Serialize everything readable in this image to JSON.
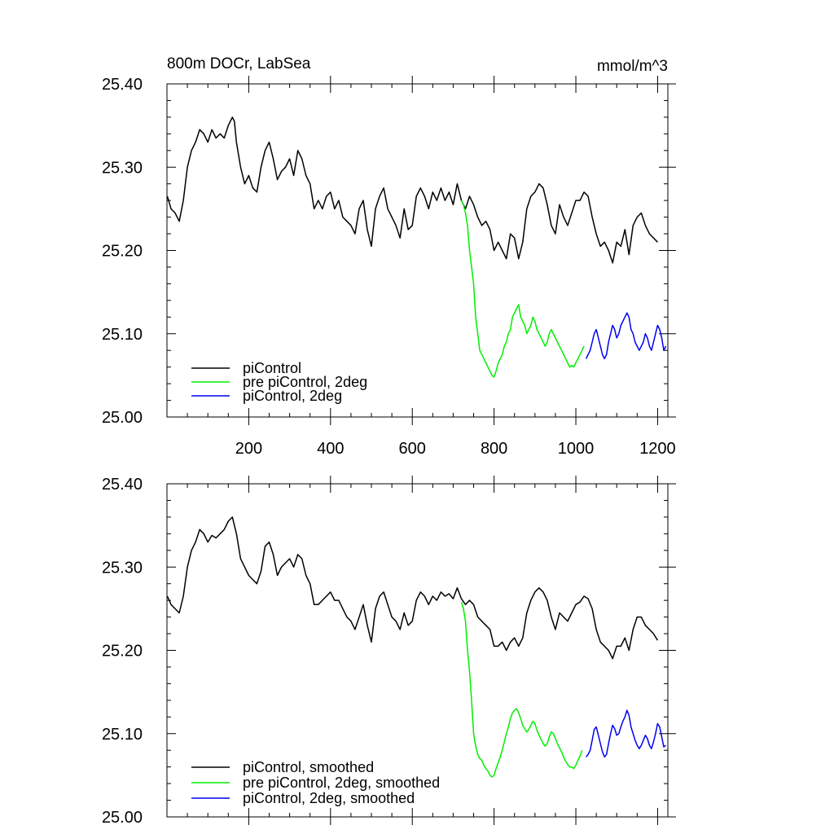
{
  "chart_data": [
    {
      "type": "line",
      "title_left": "800m DOCr, LabSea",
      "title_right": "mmol/m^3",
      "xlim": [
        0,
        1225
      ],
      "ylim": [
        25.0,
        25.4
      ],
      "x_tick_values": [
        200,
        400,
        600,
        800,
        1000,
        1200
      ],
      "x_tick_labels": [
        "200",
        "400",
        "600",
        "800",
        "1000",
        "1200"
      ],
      "y_tick_values": [
        25.0,
        25.1,
        25.2,
        25.3,
        25.4
      ],
      "y_tick_labels": [
        "25.00",
        "25.10",
        "25.20",
        "25.30",
        "25.40"
      ],
      "legend_position": "bottom-left",
      "series": [
        {
          "name": "piControl",
          "color": "#000000",
          "x": [
            1,
            10,
            20,
            30,
            40,
            50,
            60,
            70,
            80,
            90,
            100,
            110,
            120,
            130,
            140,
            150,
            160,
            165,
            170,
            180,
            190,
            200,
            210,
            220,
            230,
            240,
            250,
            260,
            270,
            280,
            290,
            300,
            310,
            320,
            330,
            340,
            350,
            360,
            370,
            380,
            390,
            400,
            410,
            420,
            430,
            440,
            450,
            460,
            470,
            480,
            490,
            500,
            510,
            520,
            530,
            540,
            550,
            560,
            570,
            580,
            590,
            600,
            610,
            620,
            630,
            640,
            650,
            660,
            670,
            680,
            690,
            700,
            710,
            720,
            730,
            740,
            750,
            760,
            770,
            780,
            790,
            800,
            810,
            820,
            830,
            840,
            850,
            860,
            870,
            880,
            890,
            900,
            910,
            920,
            930,
            940,
            950,
            960,
            970,
            980,
            990,
            1000,
            1010,
            1020,
            1030,
            1040,
            1050,
            1060,
            1070,
            1080,
            1090,
            1100,
            1110,
            1120,
            1130,
            1140,
            1150,
            1160,
            1170,
            1180,
            1190,
            1200
          ],
          "y": [
            25.265,
            25.25,
            25.245,
            25.235,
            25.26,
            25.3,
            25.32,
            25.33,
            25.345,
            25.34,
            25.33,
            25.345,
            25.335,
            25.34,
            25.335,
            25.35,
            25.36,
            25.355,
            25.33,
            25.3,
            25.28,
            25.29,
            25.275,
            25.27,
            25.3,
            25.32,
            25.33,
            25.31,
            25.285,
            25.295,
            25.3,
            25.31,
            25.29,
            25.32,
            25.31,
            25.29,
            25.28,
            25.25,
            25.26,
            25.25,
            25.265,
            25.27,
            25.25,
            25.26,
            25.24,
            25.235,
            25.23,
            25.22,
            25.25,
            25.26,
            25.225,
            25.205,
            25.25,
            25.265,
            25.275,
            25.25,
            25.24,
            25.23,
            25.215,
            25.25,
            25.225,
            25.23,
            25.265,
            25.275,
            25.265,
            25.25,
            25.27,
            25.26,
            25.275,
            25.26,
            25.27,
            25.255,
            25.28,
            25.26,
            25.25,
            25.265,
            25.255,
            25.24,
            25.23,
            25.235,
            25.225,
            25.2,
            25.21,
            25.2,
            25.19,
            25.22,
            25.215,
            25.19,
            25.21,
            25.25,
            25.265,
            25.27,
            25.28,
            25.275,
            25.255,
            25.23,
            25.22,
            25.255,
            25.24,
            25.23,
            25.245,
            25.26,
            25.26,
            25.27,
            25.265,
            25.24,
            25.22,
            25.205,
            25.21,
            25.2,
            25.185,
            25.21,
            25.205,
            25.225,
            25.195,
            25.23,
            25.24,
            25.245,
            25.23,
            25.22,
            25.215,
            25.21
          ]
        },
        {
          "name": "pre piControl, 2deg",
          "color": "#00ee00",
          "x": [
            720,
            725,
            730,
            735,
            740,
            745,
            750,
            755,
            760,
            765,
            770,
            775,
            780,
            785,
            790,
            795,
            800,
            805,
            810,
            815,
            820,
            825,
            830,
            835,
            840,
            845,
            850,
            855,
            860,
            865,
            870,
            875,
            880,
            885,
            890,
            895,
            900,
            905,
            910,
            915,
            920,
            925,
            930,
            935,
            940,
            945,
            950,
            955,
            960,
            965,
            970,
            975,
            980,
            985,
            990,
            995,
            1000,
            1005,
            1010,
            1015,
            1020
          ],
          "y": [
            25.26,
            25.255,
            25.245,
            25.23,
            25.2,
            25.18,
            25.16,
            25.12,
            25.1,
            25.08,
            25.075,
            25.07,
            25.065,
            25.06,
            25.055,
            25.05,
            25.048,
            25.055,
            25.065,
            25.07,
            25.075,
            25.085,
            25.09,
            25.1,
            25.105,
            25.12,
            25.125,
            25.13,
            25.135,
            25.12,
            25.115,
            25.11,
            25.1,
            25.105,
            25.11,
            25.12,
            25.115,
            25.105,
            25.1,
            25.095,
            25.09,
            25.085,
            25.09,
            25.1,
            25.105,
            25.1,
            25.095,
            25.09,
            25.085,
            25.08,
            25.075,
            25.07,
            25.065,
            25.06,
            25.062,
            25.06,
            25.065,
            25.07,
            25.075,
            25.08,
            25.085
          ]
        },
        {
          "name": "piControl, 2deg",
          "color": "#0000ee",
          "x": [
            1025,
            1030,
            1035,
            1040,
            1045,
            1050,
            1055,
            1060,
            1065,
            1070,
            1075,
            1080,
            1085,
            1090,
            1095,
            1100,
            1105,
            1110,
            1115,
            1120,
            1125,
            1130,
            1135,
            1140,
            1145,
            1150,
            1155,
            1160,
            1165,
            1170,
            1175,
            1180,
            1185,
            1190,
            1195,
            1200,
            1205,
            1210,
            1215,
            1220
          ],
          "y": [
            25.07,
            25.075,
            25.08,
            25.09,
            25.1,
            25.105,
            25.095,
            25.085,
            25.075,
            25.07,
            25.075,
            25.09,
            25.1,
            25.11,
            25.105,
            25.095,
            25.1,
            25.11,
            25.115,
            25.12,
            25.125,
            25.12,
            25.105,
            25.1,
            25.09,
            25.085,
            25.08,
            25.085,
            25.09,
            25.1,
            25.095,
            25.085,
            25.08,
            25.09,
            25.1,
            25.11,
            25.105,
            25.095,
            25.08,
            25.085
          ]
        }
      ]
    },
    {
      "type": "line",
      "title_left": "",
      "title_right": "",
      "xlim": [
        0,
        1225
      ],
      "ylim": [
        25.0,
        25.4
      ],
      "x_tick_values": [
        200,
        400,
        600,
        800,
        1000,
        1200
      ],
      "x_tick_labels": [],
      "y_tick_values": [
        25.0,
        25.1,
        25.2,
        25.3,
        25.4
      ],
      "y_tick_labels": [
        "25.00",
        "25.10",
        "25.20",
        "25.30",
        "25.40"
      ],
      "legend_position": "bottom-left",
      "series": [
        {
          "name": "piControl, smoothed",
          "color": "#000000",
          "x": [
            1,
            10,
            20,
            30,
            40,
            50,
            60,
            70,
            80,
            90,
            100,
            110,
            120,
            130,
            140,
            150,
            160,
            170,
            180,
            190,
            200,
            210,
            220,
            230,
            240,
            250,
            260,
            270,
            280,
            290,
            300,
            310,
            320,
            330,
            340,
            350,
            360,
            370,
            380,
            390,
            400,
            410,
            420,
            430,
            440,
            450,
            460,
            470,
            480,
            490,
            500,
            510,
            520,
            530,
            540,
            550,
            560,
            570,
            580,
            590,
            600,
            610,
            620,
            630,
            640,
            650,
            660,
            670,
            680,
            690,
            700,
            710,
            720,
            730,
            740,
            750,
            760,
            770,
            780,
            790,
            800,
            810,
            820,
            830,
            840,
            850,
            860,
            870,
            880,
            890,
            900,
            910,
            920,
            930,
            940,
            950,
            960,
            970,
            980,
            990,
            1000,
            1010,
            1020,
            1030,
            1040,
            1050,
            1060,
            1070,
            1080,
            1090,
            1100,
            1110,
            1120,
            1130,
            1140,
            1150,
            1160,
            1170,
            1180,
            1190,
            1200
          ],
          "y": [
            25.265,
            25.255,
            25.25,
            25.245,
            25.265,
            25.3,
            25.32,
            25.33,
            25.345,
            25.34,
            25.33,
            25.338,
            25.335,
            25.34,
            25.345,
            25.355,
            25.36,
            25.34,
            25.31,
            25.3,
            25.29,
            25.285,
            25.28,
            25.295,
            25.325,
            25.33,
            25.315,
            25.29,
            25.3,
            25.305,
            25.31,
            25.3,
            25.315,
            25.31,
            25.29,
            25.28,
            25.255,
            25.255,
            25.26,
            25.265,
            25.27,
            25.26,
            25.26,
            25.25,
            25.24,
            25.235,
            25.225,
            25.24,
            25.255,
            25.23,
            25.21,
            25.25,
            25.265,
            25.27,
            25.255,
            25.24,
            25.235,
            25.225,
            25.245,
            25.23,
            25.235,
            25.26,
            25.27,
            25.265,
            25.255,
            25.265,
            25.26,
            25.27,
            25.265,
            25.268,
            25.262,
            25.275,
            25.262,
            25.255,
            25.26,
            25.255,
            25.24,
            25.235,
            25.23,
            25.225,
            25.205,
            25.205,
            25.21,
            25.2,
            25.21,
            25.215,
            25.205,
            25.215,
            25.245,
            25.26,
            25.27,
            25.275,
            25.27,
            25.26,
            25.24,
            25.225,
            25.245,
            25.24,
            25.235,
            25.245,
            25.255,
            25.258,
            25.265,
            25.262,
            25.25,
            25.225,
            25.21,
            25.205,
            25.2,
            25.19,
            25.205,
            25.205,
            25.215,
            25.2,
            25.225,
            25.24,
            25.24,
            25.23,
            25.225,
            25.22,
            25.212
          ]
        },
        {
          "name": "pre piControl, 2deg, smoothed",
          "color": "#00ee00",
          "x": [
            720,
            725,
            730,
            735,
            740,
            745,
            750,
            755,
            760,
            765,
            770,
            775,
            780,
            785,
            790,
            795,
            800,
            805,
            810,
            815,
            820,
            825,
            830,
            835,
            840,
            845,
            850,
            855,
            860,
            865,
            870,
            875,
            880,
            885,
            890,
            895,
            900,
            905,
            910,
            915,
            920,
            925,
            930,
            935,
            940,
            945,
            950,
            955,
            960,
            965,
            970,
            975,
            980,
            985,
            990,
            995,
            1000,
            1005,
            1010,
            1015
          ],
          "y": [
            25.258,
            25.25,
            25.235,
            25.2,
            25.175,
            25.14,
            25.1,
            25.085,
            25.075,
            25.07,
            25.068,
            25.062,
            25.058,
            25.055,
            25.05,
            25.048,
            25.05,
            25.058,
            25.065,
            25.072,
            25.08,
            25.09,
            25.1,
            25.108,
            25.118,
            25.125,
            25.128,
            25.13,
            25.125,
            25.118,
            25.11,
            25.106,
            25.102,
            25.105,
            25.11,
            25.115,
            25.112,
            25.104,
            25.098,
            25.093,
            25.088,
            25.085,
            25.088,
            25.096,
            25.102,
            25.1,
            25.094,
            25.088,
            25.083,
            25.078,
            25.072,
            25.067,
            25.063,
            25.06,
            25.06,
            25.058,
            25.062,
            25.068,
            25.073,
            25.08
          ]
        },
        {
          "name": "piControl, 2deg, smoothed",
          "color": "#0000ee",
          "x": [
            1025,
            1030,
            1035,
            1040,
            1045,
            1050,
            1055,
            1060,
            1065,
            1070,
            1075,
            1080,
            1085,
            1090,
            1095,
            1100,
            1105,
            1110,
            1115,
            1120,
            1125,
            1130,
            1135,
            1140,
            1145,
            1150,
            1155,
            1160,
            1165,
            1170,
            1175,
            1180,
            1185,
            1190,
            1195,
            1200,
            1205,
            1210,
            1215,
            1220
          ],
          "y": [
            25.072,
            25.075,
            25.08,
            25.092,
            25.105,
            25.108,
            25.098,
            25.088,
            25.078,
            25.072,
            25.075,
            25.088,
            25.1,
            25.11,
            25.106,
            25.098,
            25.1,
            25.108,
            25.115,
            25.12,
            25.128,
            25.122,
            25.108,
            25.1,
            25.092,
            25.086,
            25.082,
            25.086,
            25.092,
            25.098,
            25.094,
            25.086,
            25.082,
            25.09,
            25.1,
            25.112,
            25.108,
            25.096,
            25.084,
            25.086
          ]
        }
      ]
    }
  ]
}
